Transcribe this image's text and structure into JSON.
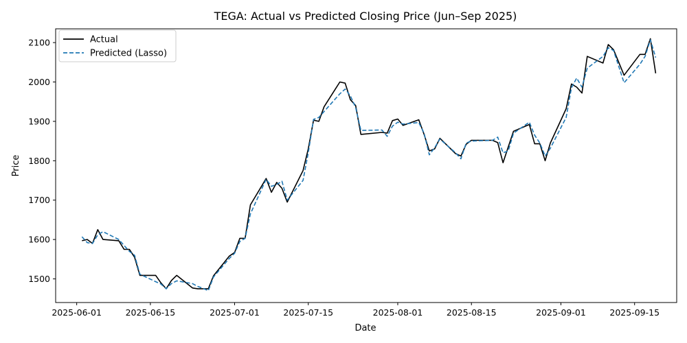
{
  "chart_data": {
    "type": "line",
    "title": "TEGA: Actual vs Predicted Closing Price (Jun–Sep 2025)",
    "xlabel": "Date",
    "ylabel": "Price",
    "xlim": [
      "2025-05-28",
      "2025-09-23"
    ],
    "ylim": [
      1440,
      2135
    ],
    "x_ticks": [
      "2025-06-01",
      "2025-06-15",
      "2025-07-01",
      "2025-07-15",
      "2025-08-01",
      "2025-08-15",
      "2025-09-01",
      "2025-09-15"
    ],
    "y_ticks": [
      1500,
      1600,
      1700,
      1800,
      1900,
      2000,
      2100
    ],
    "grid": false,
    "legend": "top-left",
    "series": [
      {
        "name": "Actual",
        "color": "#000000",
        "style": "solid",
        "points": [
          [
            "2025-06-02",
            1597
          ],
          [
            "2025-06-03",
            1600
          ],
          [
            "2025-06-04",
            1590
          ],
          [
            "2025-06-05",
            1625
          ],
          [
            "2025-06-06",
            1600
          ],
          [
            "2025-06-09",
            1597
          ],
          [
            "2025-06-10",
            1575
          ],
          [
            "2025-06-11",
            1575
          ],
          [
            "2025-06-12",
            1555
          ],
          [
            "2025-06-13",
            1509
          ],
          [
            "2025-06-16",
            1509
          ],
          [
            "2025-06-17",
            1490
          ],
          [
            "2025-06-18",
            1475
          ],
          [
            "2025-06-19",
            1496
          ],
          [
            "2025-06-20",
            1509
          ],
          [
            "2025-06-23",
            1477
          ],
          [
            "2025-06-24",
            1475
          ],
          [
            "2025-06-25",
            1475
          ],
          [
            "2025-06-26",
            1475
          ],
          [
            "2025-06-27",
            1508
          ],
          [
            "2025-06-30",
            1558
          ],
          [
            "2025-07-01",
            1567
          ],
          [
            "2025-07-02",
            1603
          ],
          [
            "2025-07-03",
            1603
          ],
          [
            "2025-07-04",
            1688
          ],
          [
            "2025-07-07",
            1755
          ],
          [
            "2025-07-08",
            1720
          ],
          [
            "2025-07-09",
            1745
          ],
          [
            "2025-07-10",
            1730
          ],
          [
            "2025-07-11",
            1695
          ],
          [
            "2025-07-14",
            1775
          ],
          [
            "2025-07-15",
            1830
          ],
          [
            "2025-07-16",
            1903
          ],
          [
            "2025-07-17",
            1900
          ],
          [
            "2025-07-18",
            1937
          ],
          [
            "2025-07-21",
            2000
          ],
          [
            "2025-07-22",
            1997
          ],
          [
            "2025-07-23",
            1955
          ],
          [
            "2025-07-24",
            1940
          ],
          [
            "2025-07-25",
            1867
          ],
          [
            "2025-07-29",
            1872
          ],
          [
            "2025-07-30",
            1870
          ],
          [
            "2025-07-31",
            1902
          ],
          [
            "2025-08-01",
            1906
          ],
          [
            "2025-08-02",
            1890
          ],
          [
            "2025-08-05",
            1904
          ],
          [
            "2025-08-06",
            1867
          ],
          [
            "2025-08-07",
            1825
          ],
          [
            "2025-08-08",
            1830
          ],
          [
            "2025-08-09",
            1857
          ],
          [
            "2025-08-12",
            1818
          ],
          [
            "2025-08-13",
            1812
          ],
          [
            "2025-08-14",
            1842
          ],
          [
            "2025-08-15",
            1852
          ],
          [
            "2025-08-19",
            1852
          ],
          [
            "2025-08-20",
            1846
          ],
          [
            "2025-08-21",
            1795
          ],
          [
            "2025-08-22",
            1835
          ],
          [
            "2025-08-23",
            1875
          ],
          [
            "2025-08-26",
            1892
          ],
          [
            "2025-08-27",
            1843
          ],
          [
            "2025-08-28",
            1843
          ],
          [
            "2025-08-29",
            1800
          ],
          [
            "2025-08-30",
            1845
          ],
          [
            "2025-09-02",
            1932
          ],
          [
            "2025-09-03",
            1995
          ],
          [
            "2025-09-04",
            1987
          ],
          [
            "2025-09-05",
            1972
          ],
          [
            "2025-09-06",
            2065
          ],
          [
            "2025-09-09",
            2048
          ],
          [
            "2025-09-10",
            2095
          ],
          [
            "2025-09-11",
            2082
          ],
          [
            "2025-09-13",
            2017
          ],
          [
            "2025-09-16",
            2070
          ],
          [
            "2025-09-17",
            2070
          ],
          [
            "2025-09-18",
            2110
          ],
          [
            "2025-09-19",
            2022
          ]
        ]
      },
      {
        "name": "Predicted (Lasso)",
        "color": "#1f77b4",
        "style": "dashed",
        "points": [
          [
            "2025-06-02",
            1607
          ],
          [
            "2025-06-03",
            1592
          ],
          [
            "2025-06-04",
            1590
          ],
          [
            "2025-06-05",
            1612
          ],
          [
            "2025-06-06",
            1620
          ],
          [
            "2025-06-09",
            1600
          ],
          [
            "2025-06-10",
            1585
          ],
          [
            "2025-06-11",
            1570
          ],
          [
            "2025-06-12",
            1560
          ],
          [
            "2025-06-13",
            1512
          ],
          [
            "2025-06-16",
            1493
          ],
          [
            "2025-06-17",
            1487
          ],
          [
            "2025-06-18",
            1475
          ],
          [
            "2025-06-19",
            1488
          ],
          [
            "2025-06-20",
            1495
          ],
          [
            "2025-06-23",
            1488
          ],
          [
            "2025-06-24",
            1481
          ],
          [
            "2025-06-25",
            1476
          ],
          [
            "2025-06-26",
            1470
          ],
          [
            "2025-06-27",
            1505
          ],
          [
            "2025-06-30",
            1552
          ],
          [
            "2025-07-01",
            1565
          ],
          [
            "2025-07-02",
            1595
          ],
          [
            "2025-07-03",
            1603
          ],
          [
            "2025-07-04",
            1665
          ],
          [
            "2025-07-07",
            1753
          ],
          [
            "2025-07-08",
            1735
          ],
          [
            "2025-07-09",
            1740
          ],
          [
            "2025-07-10",
            1748
          ],
          [
            "2025-07-11",
            1700
          ],
          [
            "2025-07-14",
            1750
          ],
          [
            "2025-07-15",
            1820
          ],
          [
            "2025-07-16",
            1905
          ],
          [
            "2025-07-17",
            1910
          ],
          [
            "2025-07-18",
            1925
          ],
          [
            "2025-07-21",
            1970
          ],
          [
            "2025-07-22",
            1982
          ],
          [
            "2025-07-23",
            1965
          ],
          [
            "2025-07-24",
            1935
          ],
          [
            "2025-07-25",
            1877
          ],
          [
            "2025-07-29",
            1878
          ],
          [
            "2025-07-30",
            1862
          ],
          [
            "2025-07-31",
            1888
          ],
          [
            "2025-08-01",
            1898
          ],
          [
            "2025-08-02",
            1893
          ],
          [
            "2025-08-05",
            1897
          ],
          [
            "2025-08-06",
            1870
          ],
          [
            "2025-08-07",
            1815
          ],
          [
            "2025-08-08",
            1833
          ],
          [
            "2025-08-09",
            1855
          ],
          [
            "2025-08-12",
            1820
          ],
          [
            "2025-08-13",
            1805
          ],
          [
            "2025-08-14",
            1845
          ],
          [
            "2025-08-15",
            1850
          ],
          [
            "2025-08-19",
            1852
          ],
          [
            "2025-08-20",
            1860
          ],
          [
            "2025-08-21",
            1820
          ],
          [
            "2025-08-22",
            1825
          ],
          [
            "2025-08-23",
            1870
          ],
          [
            "2025-08-26",
            1898
          ],
          [
            "2025-08-27",
            1865
          ],
          [
            "2025-08-28",
            1845
          ],
          [
            "2025-08-29",
            1812
          ],
          [
            "2025-08-30",
            1832
          ],
          [
            "2025-09-02",
            1910
          ],
          [
            "2025-09-03",
            1985
          ],
          [
            "2025-09-04",
            2010
          ],
          [
            "2025-09-05",
            1987
          ],
          [
            "2025-09-06",
            2035
          ],
          [
            "2025-09-09",
            2065
          ],
          [
            "2025-09-10",
            2087
          ],
          [
            "2025-09-11",
            2080
          ],
          [
            "2025-09-13",
            1998
          ],
          [
            "2025-09-16",
            2045
          ],
          [
            "2025-09-17",
            2065
          ],
          [
            "2025-09-18",
            2107
          ],
          [
            "2025-09-19",
            2062
          ]
        ]
      }
    ]
  }
}
